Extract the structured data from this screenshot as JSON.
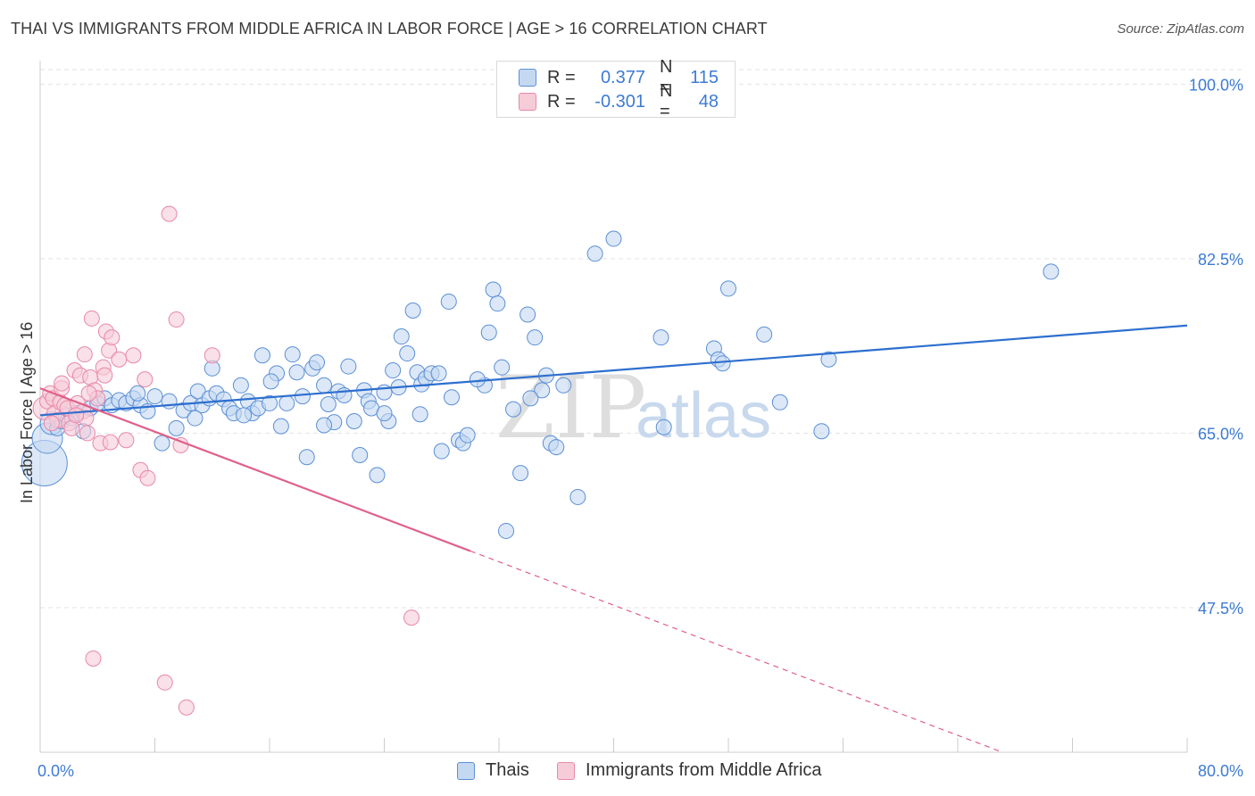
{
  "title": "THAI VS IMMIGRANTS FROM MIDDLE AFRICA IN LABOR FORCE | AGE > 16 CORRELATION CHART",
  "source": "Source: ZipAtlas.com",
  "watermark": {
    "zip": "ZIP",
    "atlas": "atlas"
  },
  "colors": {
    "blue": "#5b8fd6",
    "blue_fill": "#c5d8f2",
    "blue_line": "#2d6fcf",
    "pink": "#e888a8",
    "pink_fill": "#f7ccd9",
    "pink_line": "#e0608a",
    "axis_text": "#3d7bd4",
    "grid": "#e3e3e3"
  },
  "legend": {
    "rows": [
      {
        "r_label": "R =",
        "r_value": "0.377",
        "n_label": "N =",
        "n_value": "115"
      },
      {
        "r_label": "R =",
        "r_value": "-0.301",
        "n_label": "N =",
        "n_value": "48"
      }
    ]
  },
  "bottom_legend": [
    "Thais",
    "Immigrants from Middle Africa"
  ],
  "chart_data": {
    "type": "scatter",
    "title": "THAI VS IMMIGRANTS FROM MIDDLE AFRICA IN LABOR FORCE | AGE > 16 CORRELATION CHART",
    "xlabel": "",
    "ylabel": "In Labor Force | Age > 16",
    "xlim": [
      0,
      80
    ],
    "ylim": [
      33,
      102
    ],
    "x_tick_labels": [
      "0.0%",
      "80.0%"
    ],
    "y_ticks": [
      47.5,
      65.0,
      82.5,
      100.0
    ],
    "y_tick_labels": [
      "47.5%",
      "65.0%",
      "82.5%",
      "100.0%"
    ],
    "grid": true,
    "series": [
      {
        "name": "Thais",
        "r": 0.377,
        "n": 115,
        "trend": {
          "x": [
            0,
            80
          ],
          "y": [
            66.8,
            75.8
          ],
          "solid_to": 80
        },
        "points": [
          [
            0.3,
            62.0,
            3
          ],
          [
            0.5,
            64.5,
            2
          ],
          [
            0.8,
            66.0,
            1.5
          ],
          [
            1.2,
            65.5,
            1
          ],
          [
            1.5,
            66.2,
            1
          ],
          [
            1.8,
            66.8,
            1
          ],
          [
            2.2,
            66.5,
            1
          ],
          [
            2.5,
            67.0,
            1
          ],
          [
            3.0,
            65.2,
            1
          ],
          [
            3.5,
            67.5,
            1
          ],
          [
            4.0,
            68.0,
            1
          ],
          [
            4.5,
            68.5,
            1
          ],
          [
            5.0,
            67.8,
            1
          ],
          [
            5.5,
            68.3,
            1
          ],
          [
            6.0,
            68.0,
            1
          ],
          [
            6.5,
            68.5,
            1
          ],
          [
            7.0,
            67.8,
            1
          ],
          [
            7.5,
            67.2,
            1
          ],
          [
            8.0,
            68.7,
            1
          ],
          [
            8.5,
            64.0,
            1
          ],
          [
            9.0,
            68.2,
            1
          ],
          [
            9.5,
            65.5,
            1
          ],
          [
            10.0,
            67.3,
            1
          ],
          [
            10.5,
            68.0,
            1
          ],
          [
            11.0,
            69.2,
            1
          ],
          [
            11.3,
            67.8,
            1
          ],
          [
            11.8,
            68.5,
            1
          ],
          [
            12.0,
            71.5,
            1
          ],
          [
            12.3,
            69.0,
            1
          ],
          [
            12.8,
            68.4,
            1
          ],
          [
            13.2,
            67.5,
            1
          ],
          [
            13.5,
            67.0,
            1
          ],
          [
            14.0,
            69.8,
            1
          ],
          [
            14.5,
            68.2,
            1
          ],
          [
            14.8,
            67.0,
            1
          ],
          [
            15.2,
            67.5,
            1
          ],
          [
            15.5,
            72.8,
            1
          ],
          [
            16.0,
            68.0,
            1
          ],
          [
            16.5,
            71.0,
            1
          ],
          [
            16.8,
            65.7,
            1
          ],
          [
            17.2,
            68.0,
            1
          ],
          [
            17.6,
            72.9,
            1
          ],
          [
            17.9,
            71.1,
            1
          ],
          [
            18.3,
            68.7,
            1
          ],
          [
            18.6,
            62.6,
            1
          ],
          [
            19.0,
            71.5,
            1
          ],
          [
            19.3,
            72.1,
            1
          ],
          [
            19.8,
            69.8,
            1
          ],
          [
            20.1,
            67.9,
            1
          ],
          [
            20.5,
            66.1,
            1
          ],
          [
            20.8,
            69.2,
            1
          ],
          [
            21.2,
            68.8,
            1
          ],
          [
            21.5,
            71.7,
            1
          ],
          [
            21.9,
            66.2,
            1
          ],
          [
            22.3,
            62.8,
            1
          ],
          [
            22.6,
            69.3,
            1
          ],
          [
            22.9,
            68.2,
            1
          ],
          [
            23.1,
            67.5,
            1
          ],
          [
            23.5,
            60.8,
            1
          ],
          [
            24.0,
            69.1,
            1
          ],
          [
            24.3,
            66.2,
            1
          ],
          [
            24.6,
            71.3,
            1
          ],
          [
            25.0,
            69.6,
            1
          ],
          [
            25.2,
            74.7,
            1
          ],
          [
            25.6,
            73.0,
            1
          ],
          [
            26.0,
            77.3,
            1
          ],
          [
            26.3,
            71.1,
            1
          ],
          [
            26.6,
            69.9,
            1
          ],
          [
            26.9,
            70.5,
            1
          ],
          [
            27.3,
            71.0,
            1
          ],
          [
            27.8,
            71.0,
            1
          ],
          [
            28.0,
            63.2,
            1
          ],
          [
            28.5,
            78.2,
            1
          ],
          [
            28.7,
            68.6,
            1
          ],
          [
            29.2,
            64.3,
            1
          ],
          [
            29.5,
            64.0,
            1
          ],
          [
            29.8,
            64.8,
            1
          ],
          [
            31.0,
            69.8,
            1
          ],
          [
            31.3,
            75.1,
            1
          ],
          [
            31.6,
            79.4,
            1
          ],
          [
            31.9,
            78.0,
            1
          ],
          [
            32.2,
            71.6,
            1
          ],
          [
            32.5,
            55.2,
            1
          ],
          [
            33.0,
            67.4,
            1
          ],
          [
            33.5,
            61.0,
            1
          ],
          [
            34.0,
            76.9,
            1
          ],
          [
            34.5,
            74.6,
            1
          ],
          [
            35.0,
            69.3,
            1
          ],
          [
            35.3,
            70.8,
            1
          ],
          [
            35.6,
            64.0,
            1
          ],
          [
            36.0,
            63.6,
            1
          ],
          [
            36.5,
            69.8,
            1
          ],
          [
            37.5,
            58.6,
            1
          ],
          [
            38.7,
            83.0,
            1
          ],
          [
            40.0,
            84.5,
            1
          ],
          [
            43.3,
            74.6,
            1
          ],
          [
            43.5,
            65.6,
            1
          ],
          [
            47.0,
            73.5,
            1
          ],
          [
            47.3,
            72.4,
            1
          ],
          [
            47.6,
            72.0,
            1
          ],
          [
            48.0,
            79.5,
            1
          ],
          [
            50.5,
            74.9,
            1
          ],
          [
            51.6,
            68.1,
            1
          ],
          [
            54.5,
            65.2,
            1
          ],
          [
            55.0,
            72.4,
            1
          ],
          [
            70.5,
            81.2,
            1
          ],
          [
            24.0,
            67.0,
            1
          ],
          [
            10.8,
            66.5,
            1
          ],
          [
            6.8,
            69.0,
            1
          ],
          [
            14.2,
            66.8,
            1
          ],
          [
            19.8,
            65.8,
            1
          ],
          [
            26.5,
            66.9,
            1
          ],
          [
            30.5,
            70.4,
            1
          ],
          [
            34.2,
            68.5,
            1
          ],
          [
            16.1,
            70.2,
            1
          ]
        ]
      },
      {
        "name": "Immigrants from Middle Africa",
        "r": -0.301,
        "n": 48,
        "trend": {
          "x": [
            0,
            80
          ],
          "y": [
            69.5,
            26.0
          ],
          "solid_to": 30
        },
        "points": [
          [
            0.3,
            67.5,
            1.5
          ],
          [
            0.5,
            68.2,
            1
          ],
          [
            0.7,
            69.0,
            1
          ],
          [
            0.9,
            68.5,
            1
          ],
          [
            1.0,
            67.0,
            1
          ],
          [
            1.2,
            66.3,
            1
          ],
          [
            1.4,
            68.1,
            1
          ],
          [
            1.5,
            69.5,
            1
          ],
          [
            1.7,
            67.8,
            1
          ],
          [
            1.9,
            67.5,
            1
          ],
          [
            2.0,
            66.0,
            1
          ],
          [
            2.2,
            65.5,
            1
          ],
          [
            2.4,
            71.3,
            1
          ],
          [
            2.6,
            68.0,
            1
          ],
          [
            2.8,
            70.8,
            1
          ],
          [
            3.0,
            67.2,
            1
          ],
          [
            3.1,
            72.9,
            1
          ],
          [
            3.2,
            66.5,
            1
          ],
          [
            3.3,
            65.0,
            1
          ],
          [
            3.5,
            70.6,
            1
          ],
          [
            3.6,
            76.5,
            1
          ],
          [
            3.8,
            69.3,
            1
          ],
          [
            4.0,
            68.5,
            1
          ],
          [
            4.2,
            64.0,
            1
          ],
          [
            4.4,
            71.6,
            1
          ],
          [
            4.5,
            70.8,
            1
          ],
          [
            4.6,
            75.2,
            1
          ],
          [
            4.8,
            73.3,
            1
          ],
          [
            4.9,
            64.1,
            1
          ],
          [
            5.0,
            74.6,
            1
          ],
          [
            5.5,
            72.4,
            1
          ],
          [
            6.0,
            64.3,
            1
          ],
          [
            6.5,
            72.8,
            1
          ],
          [
            7.0,
            61.3,
            1
          ],
          [
            7.3,
            70.4,
            1
          ],
          [
            7.5,
            60.5,
            1
          ],
          [
            9.0,
            87.0,
            1
          ],
          [
            9.5,
            76.4,
            1
          ],
          [
            9.8,
            63.8,
            1
          ],
          [
            10.2,
            37.5,
            1
          ],
          [
            12.0,
            72.8,
            1
          ],
          [
            25.9,
            46.5,
            1
          ],
          [
            3.7,
            42.4,
            1
          ],
          [
            8.7,
            40.0,
            1
          ],
          [
            1.5,
            70.0,
            1
          ],
          [
            2.5,
            66.8,
            1
          ],
          [
            0.8,
            66.0,
            1
          ],
          [
            3.4,
            69.0,
            1
          ]
        ]
      }
    ]
  }
}
